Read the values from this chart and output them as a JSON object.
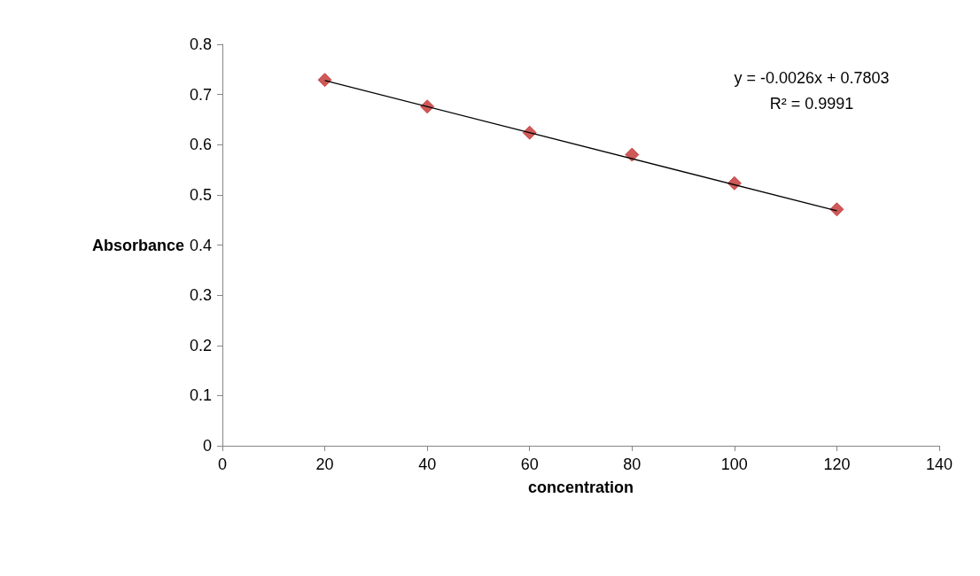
{
  "chart_data": {
    "type": "scatter",
    "xlabel": "concentration",
    "ylabel": "Absorbance",
    "xlim": [
      0,
      140
    ],
    "xticks": [
      0,
      20,
      40,
      60,
      80,
      100,
      120,
      140
    ],
    "ylim": [
      0,
      0.8
    ],
    "yticks": [
      0,
      0.1,
      0.2,
      0.3,
      0.4,
      0.5,
      0.6,
      0.7,
      0.8
    ],
    "marker": "diamond",
    "grid": false,
    "series": [
      {
        "color": "#c0302e",
        "x": [
          20,
          40,
          60,
          80,
          100,
          120
        ],
        "values": [
          0.729,
          0.676,
          0.624,
          0.58,
          0.523,
          0.471
        ]
      },
      {
        "type": "line",
        "color": "#000000",
        "x": [
          20,
          120
        ],
        "values": [
          0.728,
          0.468
        ],
        "marker": "none",
        "line_style": "solid"
      }
    ],
    "annotations": [
      "y = -0.0026x + 0.7803",
      "R² = 0.9991"
    ]
  }
}
